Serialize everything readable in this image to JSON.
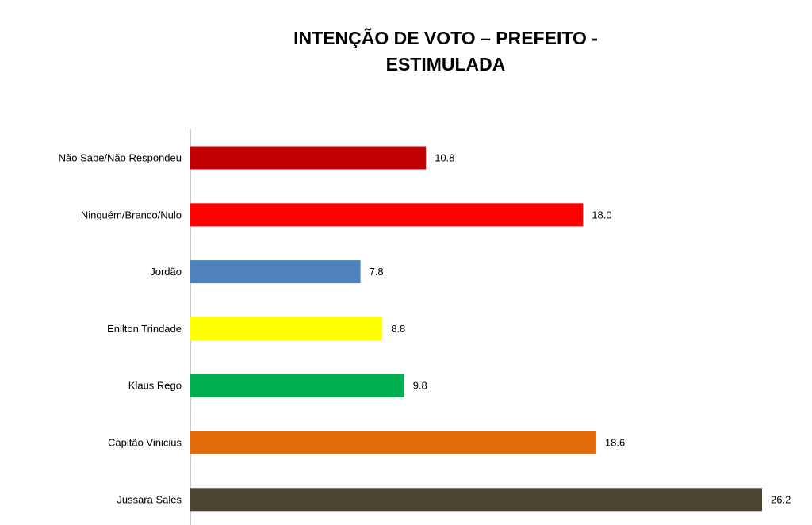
{
  "chart_data": {
    "type": "bar",
    "orientation": "horizontal",
    "title_lines": [
      "INTENÇÃO DE VOTO – PREFEITO -",
      "ESTIMULADA"
    ],
    "categories": [
      "Não Sabe/Não Respondeu",
      "Ninguém/Branco/Nulo",
      "Jordão",
      "Enilton Trindade",
      "Klaus Rego",
      "Capitão Vinicius",
      "Jussara Sales"
    ],
    "values": [
      10.8,
      18.0,
      7.8,
      8.8,
      9.8,
      18.6,
      26.2
    ],
    "value_labels": [
      "10.8",
      "18.0",
      "7.8",
      "8.8",
      "9.8",
      "18.6",
      "26.2"
    ],
    "colors": [
      "#C00000",
      "#FF0000",
      "#4F81BD",
      "#FFFF00",
      "#00B050",
      "#E36C0A",
      "#4B4431"
    ],
    "xlim": [
      0,
      26.2
    ],
    "grid": false,
    "legend": "none"
  }
}
